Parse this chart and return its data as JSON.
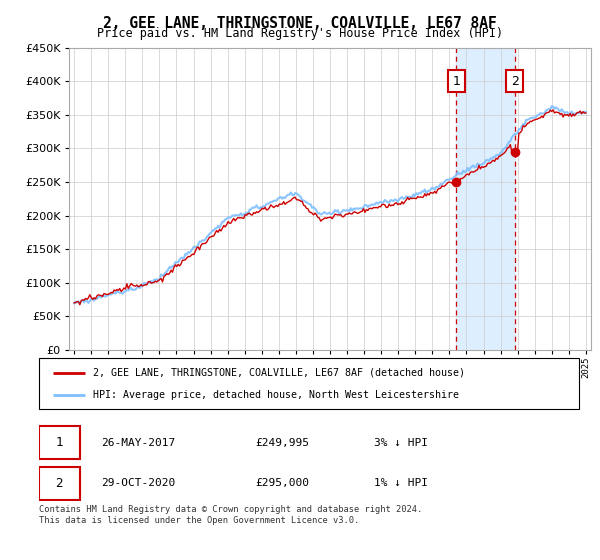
{
  "title": "2, GEE LANE, THRINGSTONE, COALVILLE, LE67 8AF",
  "subtitle": "Price paid vs. HM Land Registry's House Price Index (HPI)",
  "legend_line1": "2, GEE LANE, THRINGSTONE, COALVILLE, LE67 8AF (detached house)",
  "legend_line2": "HPI: Average price, detached house, North West Leicestershire",
  "annotation1_date": "26-MAY-2017",
  "annotation1_price": "£249,995",
  "annotation1_hpi": "3% ↓ HPI",
  "annotation2_date": "29-OCT-2020",
  "annotation2_price": "£295,000",
  "annotation2_hpi": "1% ↓ HPI",
  "footer": "Contains HM Land Registry data © Crown copyright and database right 2024.\nThis data is licensed under the Open Government Licence v3.0.",
  "hpi_color": "#7fbfff",
  "price_color": "#cc0000",
  "highlight_color": "#ddeeff",
  "vline_color": "#cc0000",
  "annotation_box_color": "#cc0000",
  "grid_color": "#cccccc",
  "ylim_min": 0,
  "ylim_max": 450000,
  "xmin": 1995,
  "xmax": 2025,
  "sale1_year": 2017.4,
  "sale1_price": 249995,
  "sale2_year": 2020.83,
  "sale2_price": 295000
}
